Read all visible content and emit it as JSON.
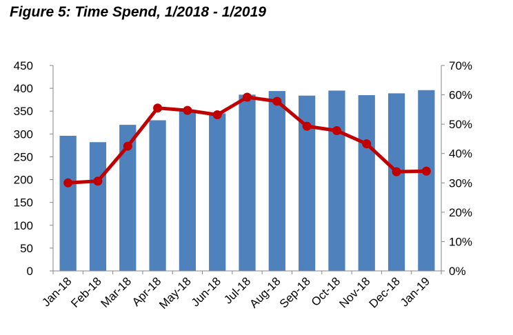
{
  "figure": {
    "title": "Figure 5: Time Spend, 1/2018 - 1/2019"
  },
  "chart_data": {
    "type": "bar",
    "title": "Figure 5: Time Spend, 1/2018 - 1/2019",
    "categories": [
      "Jan-18",
      "Feb-18",
      "Mar-18",
      "Apr-18",
      "May-18",
      "Jun-18",
      "Jul-18",
      "Aug-18",
      "Sep-18",
      "Oct-18",
      "Nov-18",
      "Dec-18",
      "Jan-19"
    ],
    "series": [
      {
        "type": "bar",
        "axis": "left",
        "values": [
          296,
          282,
          320,
          330,
          350,
          345,
          386,
          394,
          384,
          395,
          385,
          389,
          396
        ],
        "color": "#4f81bd"
      },
      {
        "type": "line",
        "axis": "right",
        "values": [
          0.3,
          0.306,
          0.425,
          0.555,
          0.547,
          0.532,
          0.592,
          0.578,
          0.493,
          0.478,
          0.433,
          0.338,
          0.34
        ],
        "color": "#c00000"
      }
    ],
    "y_left": {
      "min": 0,
      "max": 450,
      "ticks": [
        "0",
        "50",
        "100",
        "150",
        "200",
        "250",
        "300",
        "350",
        "400",
        "450"
      ]
    },
    "y_right": {
      "min": 0,
      "max": 0.7,
      "ticks": [
        "0%",
        "10%",
        "20%",
        "30%",
        "40%",
        "50%",
        "60%",
        "70%"
      ]
    },
    "grid": false,
    "legend": "none"
  }
}
